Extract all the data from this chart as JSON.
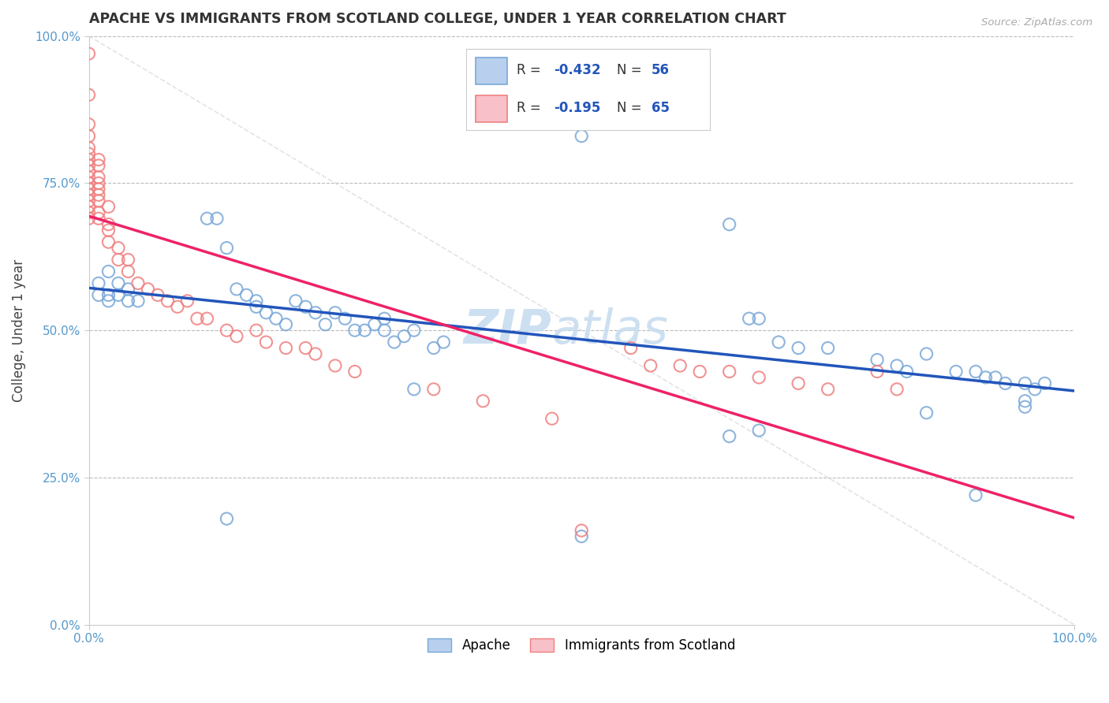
{
  "title": "APACHE VS IMMIGRANTS FROM SCOTLAND COLLEGE, UNDER 1 YEAR CORRELATION CHART",
  "source": "Source: ZipAtlas.com",
  "ylabel": "College, Under 1 year",
  "xlim": [
    0.0,
    1.0
  ],
  "ylim": [
    0.0,
    1.0
  ],
  "xtick_labels": [
    "0.0%",
    "100.0%"
  ],
  "ytick_labels": [
    "0.0%",
    "25.0%",
    "50.0%",
    "75.0%",
    "100.0%"
  ],
  "ytick_values": [
    0.0,
    0.25,
    0.5,
    0.75,
    1.0
  ],
  "grid_color": "#bbbbbb",
  "background_color": "#ffffff",
  "watermark": "ZIPatlas",
  "legend_r1": "-0.432",
  "legend_n1": "56",
  "legend_r2": "-0.195",
  "legend_n2": "65",
  "legend_label1": "Apache",
  "legend_label2": "Immigrants from Scotland",
  "color_apache": "#7aa8d8",
  "color_scotland": "#f08080",
  "apache_x": [
    0.01,
    0.01,
    0.02,
    0.02,
    0.02,
    0.03,
    0.03,
    0.04,
    0.04,
    0.05,
    0.12,
    0.13,
    0.14,
    0.15,
    0.16,
    0.17,
    0.17,
    0.18,
    0.19,
    0.2,
    0.21,
    0.22,
    0.23,
    0.24,
    0.25,
    0.26,
    0.27,
    0.28,
    0.29,
    0.3,
    0.31,
    0.33,
    0.3,
    0.32,
    0.35,
    0.36,
    0.47,
    0.5,
    0.65,
    0.67,
    0.68,
    0.7,
    0.72,
    0.75,
    0.8,
    0.82,
    0.83,
    0.85,
    0.88,
    0.9,
    0.91,
    0.92,
    0.93,
    0.95,
    0.96,
    0.97
  ],
  "apache_y": [
    0.58,
    0.56,
    0.6,
    0.56,
    0.55,
    0.58,
    0.56,
    0.57,
    0.55,
    0.55,
    0.69,
    0.69,
    0.64,
    0.57,
    0.56,
    0.55,
    0.54,
    0.53,
    0.52,
    0.51,
    0.55,
    0.54,
    0.53,
    0.51,
    0.53,
    0.52,
    0.5,
    0.5,
    0.51,
    0.5,
    0.48,
    0.5,
    0.52,
    0.49,
    0.47,
    0.48,
    0.87,
    0.83,
    0.68,
    0.52,
    0.52,
    0.48,
    0.47,
    0.47,
    0.45,
    0.44,
    0.43,
    0.46,
    0.43,
    0.43,
    0.42,
    0.42,
    0.41,
    0.41,
    0.4,
    0.41
  ],
  "apache_x2": [
    0.14,
    0.33,
    0.5,
    0.65,
    0.68,
    0.85,
    0.9,
    0.95,
    0.95
  ],
  "apache_y2": [
    0.18,
    0.4,
    0.15,
    0.32,
    0.33,
    0.36,
    0.22,
    0.38,
    0.37
  ],
  "scotland_x": [
    0.0,
    0.0,
    0.0,
    0.0,
    0.0,
    0.0,
    0.0,
    0.0,
    0.0,
    0.0,
    0.0,
    0.0,
    0.0,
    0.0,
    0.0,
    0.0,
    0.0,
    0.01,
    0.01,
    0.01,
    0.01,
    0.01,
    0.01,
    0.01,
    0.01,
    0.01,
    0.02,
    0.02,
    0.02,
    0.02,
    0.03,
    0.03,
    0.04,
    0.04,
    0.05,
    0.06,
    0.07,
    0.08,
    0.09,
    0.1,
    0.11,
    0.12,
    0.14,
    0.15,
    0.17,
    0.18,
    0.2,
    0.22,
    0.23,
    0.25,
    0.27,
    0.35,
    0.4,
    0.47,
    0.5,
    0.55,
    0.57,
    0.6,
    0.62,
    0.65,
    0.68,
    0.72,
    0.75,
    0.8,
    0.82
  ],
  "scotland_y": [
    0.97,
    0.9,
    0.85,
    0.83,
    0.81,
    0.8,
    0.79,
    0.78,
    0.77,
    0.76,
    0.75,
    0.74,
    0.73,
    0.72,
    0.71,
    0.7,
    0.69,
    0.79,
    0.78,
    0.76,
    0.75,
    0.74,
    0.73,
    0.72,
    0.7,
    0.69,
    0.71,
    0.68,
    0.67,
    0.65,
    0.64,
    0.62,
    0.62,
    0.6,
    0.58,
    0.57,
    0.56,
    0.55,
    0.54,
    0.55,
    0.52,
    0.52,
    0.5,
    0.49,
    0.5,
    0.48,
    0.47,
    0.47,
    0.46,
    0.44,
    0.43,
    0.4,
    0.38,
    0.35,
    0.16,
    0.47,
    0.44,
    0.44,
    0.43,
    0.43,
    0.42,
    0.41,
    0.4,
    0.43,
    0.4
  ]
}
